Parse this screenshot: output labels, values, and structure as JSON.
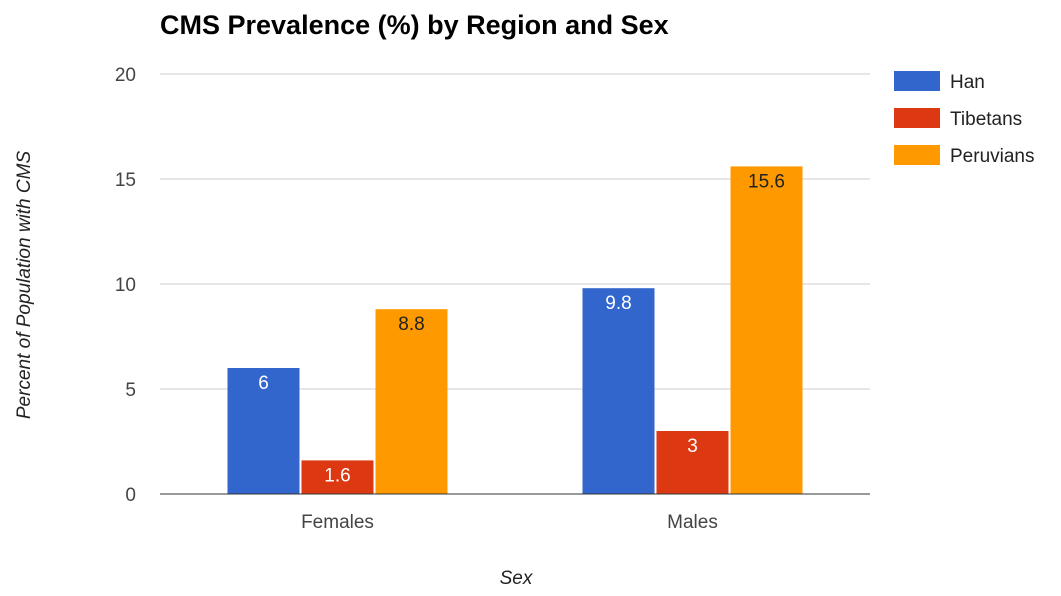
{
  "chart_data": {
    "type": "bar",
    "title": "CMS Prevalence (%) by Region and Sex",
    "xlabel": "Sex",
    "ylabel": "Percent of Population with CMS",
    "categories": [
      "Females",
      "Males"
    ],
    "series": [
      {
        "name": "Han",
        "color": "#3366cc",
        "values": [
          6,
          9.8
        ],
        "labels": [
          "6",
          "9.8"
        ],
        "label_color": "#ffffff"
      },
      {
        "name": "Tibetans",
        "color": "#dc3912",
        "values": [
          1.6,
          3
        ],
        "labels": [
          "1.6",
          "3"
        ],
        "label_color": "#ffffff"
      },
      {
        "name": "Peruvians",
        "color": "#ff9900",
        "values": [
          8.8,
          15.6
        ],
        "labels": [
          "8.8",
          "15.6"
        ],
        "label_color": "#222222"
      }
    ],
    "ylim": [
      0,
      20
    ],
    "yticks": [
      "0",
      "5",
      "10",
      "15",
      "20"
    ],
    "ytick_values": [
      0,
      5,
      10,
      15,
      20
    ],
    "grid": true,
    "legend_position": "right"
  }
}
